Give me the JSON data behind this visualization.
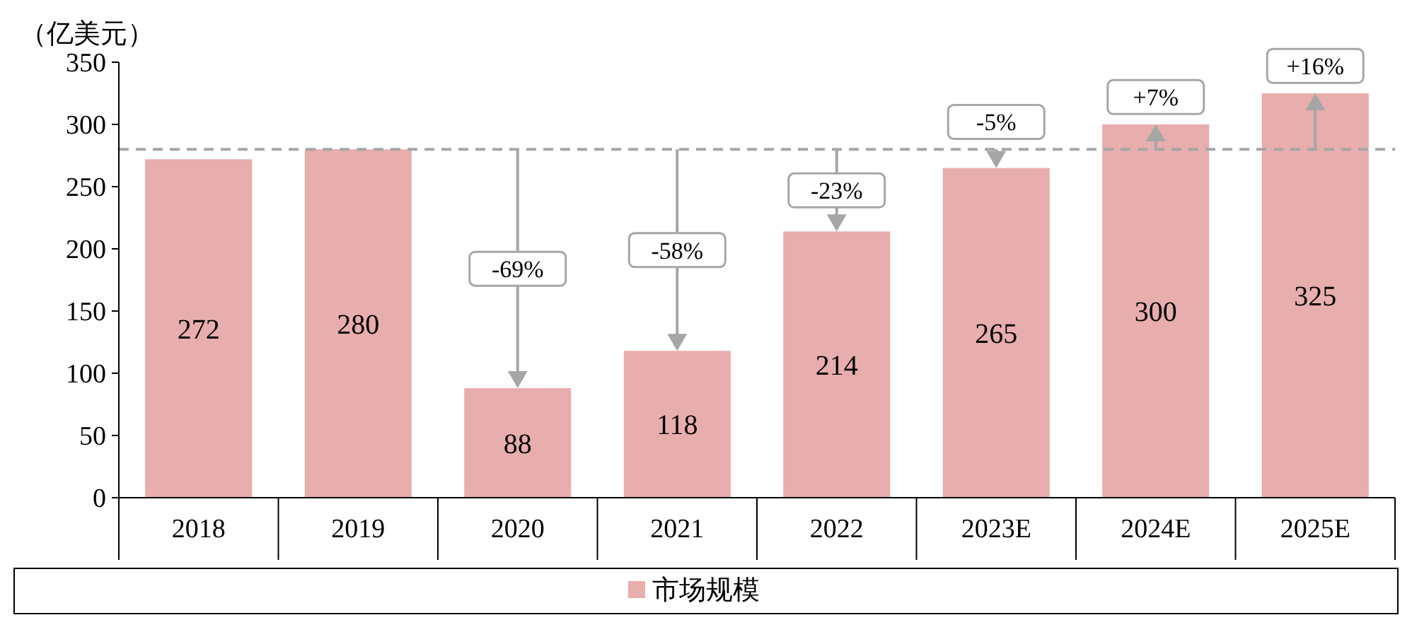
{
  "chart_data": {
    "type": "bar",
    "ylabel": "（亿美元）",
    "categories": [
      "2018",
      "2019",
      "2020",
      "2021",
      "2022",
      "2023E",
      "2024E",
      "2025E"
    ],
    "series": [
      {
        "name": "市场规模",
        "color": "#e8adad",
        "values": [
          272,
          280,
          88,
          118,
          214,
          265,
          300,
          325
        ]
      }
    ],
    "ylim": [
      0,
      350
    ],
    "yticks": [
      0,
      50,
      100,
      150,
      200,
      250,
      300,
      350
    ],
    "data_labels": true,
    "legend": "bottom",
    "grid": false,
    "ref_lines": [
      {
        "axis": "y",
        "value": 280,
        "color": "#a6a6a6",
        "line_style": "dashed"
      }
    ],
    "annotations": [
      "-69%",
      "-58%",
      {
        "text": "-23%",
        "x": "2022",
        "y": 214
      },
      {
        "text": "-5%",
        "x": "2023E",
        "y": 265
      },
      {
        "text": "+7%",
        "x": "2024E",
        "y": 300
      },
      {
        "text": "+16%",
        "x": "2025E",
        "y": 325
      }
    ]
  }
}
